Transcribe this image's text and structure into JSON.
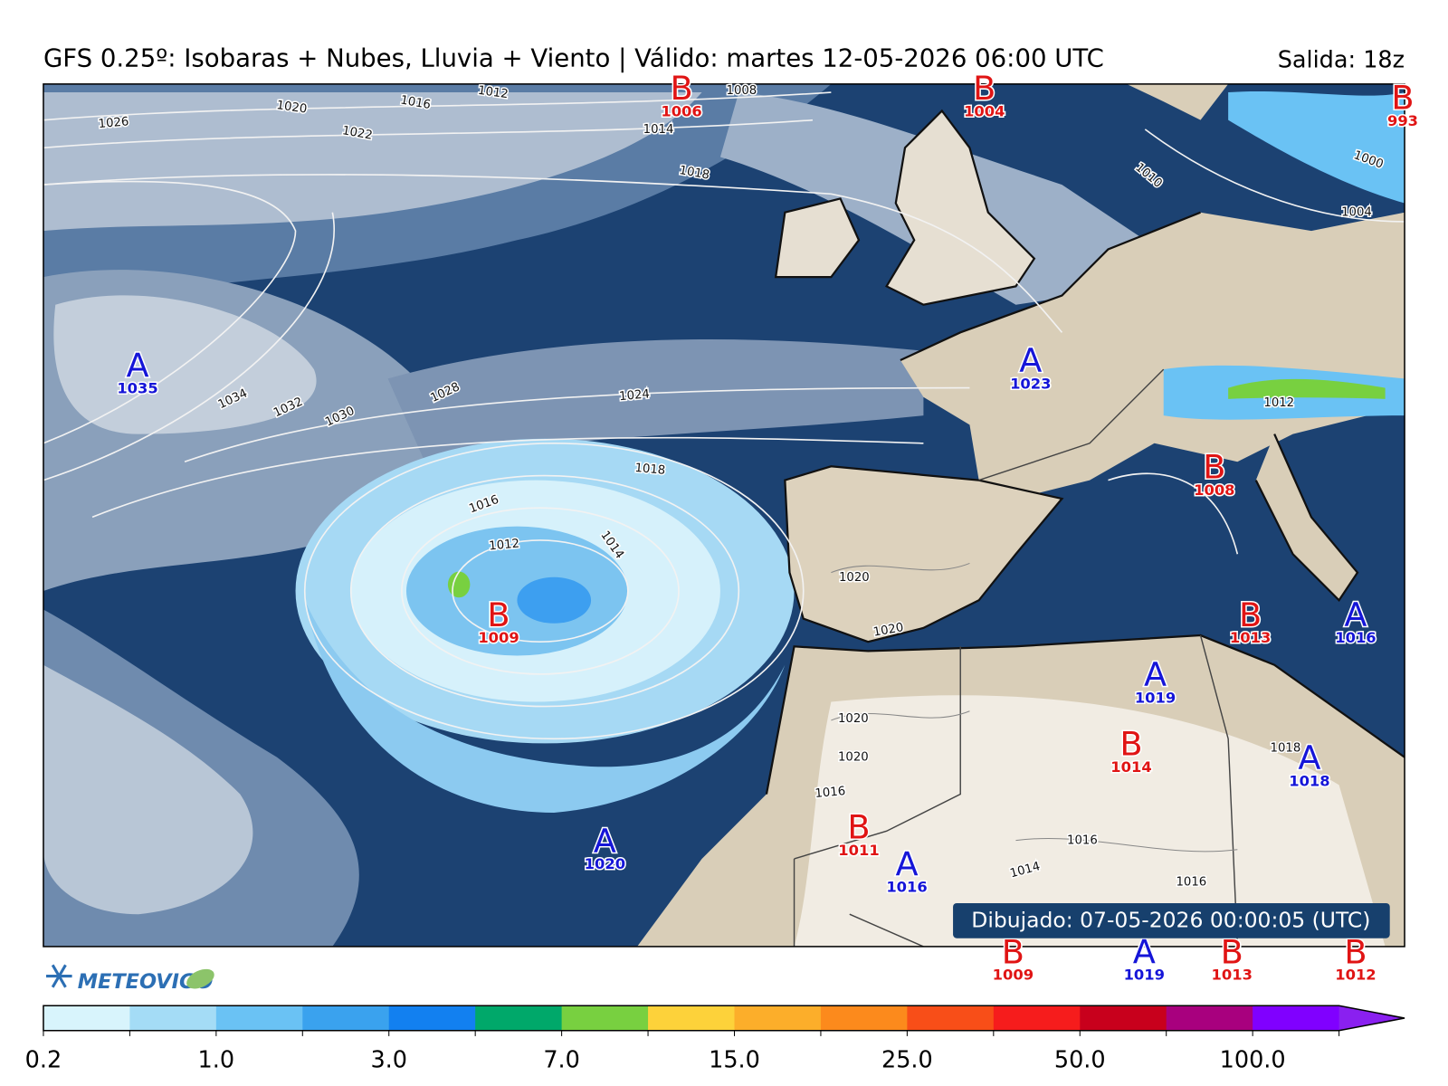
{
  "header": {
    "title": "GFS 0.25º: Isobaras + Nubes, Lluvia + Viento | Válido: martes 12-05-2026 06:00 UTC",
    "run": "Salida: 18z"
  },
  "pressure_centers": [
    {
      "label": "B",
      "pressure": 1006
    },
    {
      "label": "B",
      "pressure": 1004
    },
    {
      "label": "B",
      "pressure": 993
    },
    {
      "label": "A",
      "pressure": 1035
    },
    {
      "label": "A",
      "pressure": 1023
    },
    {
      "label": "B",
      "pressure": 1008
    },
    {
      "label": "B",
      "pressure": 1009
    },
    {
      "label": "B",
      "pressure": 1013
    },
    {
      "label": "A",
      "pressure": 1016
    },
    {
      "label": "A",
      "pressure": 1019
    },
    {
      "label": "B",
      "pressure": 1014
    },
    {
      "label": "A",
      "pressure": 1018
    },
    {
      "label": "B",
      "pressure": 1011
    },
    {
      "label": "A",
      "pressure": 1020
    },
    {
      "label": "A",
      "pressure": 1016
    },
    {
      "label": "B",
      "pressure": 1009
    },
    {
      "label": "A",
      "pressure": 1019
    },
    {
      "label": "B",
      "pressure": 1013
    },
    {
      "label": "B",
      "pressure": 1012
    }
  ],
  "isobar_labels": [
    1026,
    1020,
    1016,
    1012,
    1008,
    1022,
    1014,
    1018,
    1034,
    1032,
    1030,
    1028,
    1024,
    1018,
    1016,
    1012,
    1014,
    1020,
    1020,
    1020,
    1020,
    1016,
    1016,
    1014,
    1016,
    1012,
    1010,
    1000,
    1004,
    1018
  ],
  "drawn": "Dibujado: 07-05-2026 00:00:05 (UTC)",
  "logo": "METEOVIGO",
  "colorbar": {
    "ticks": [
      "0.2",
      "1.0",
      "3.0",
      "7.0",
      "15.0",
      "25.0",
      "50.0",
      "100.0"
    ],
    "colors": [
      "#d8f4fc",
      "#a4dcf6",
      "#6ac2f4",
      "#3aa2ee",
      "#1280f0",
      "#00a86a",
      "#78d040",
      "#fdd23a",
      "#fcae2a",
      "#fc8a1c",
      "#f84e18",
      "#f61c1c",
      "#c8001c",
      "#a8007e",
      "#8000ff",
      "#8a20f0"
    ]
  }
}
